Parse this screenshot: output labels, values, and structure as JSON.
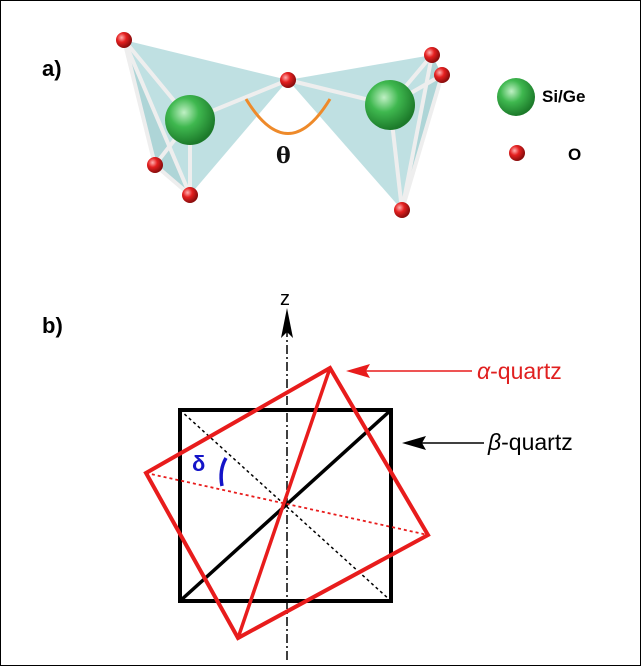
{
  "panels": {
    "a": {
      "label": "a)"
    },
    "b": {
      "label": "b)"
    }
  },
  "legend": {
    "si_ge": {
      "label": "Si/Ge",
      "color": "#2eaa3f"
    },
    "oxygen": {
      "label": "O",
      "color": "#e01616"
    }
  },
  "angles": {
    "theta": "θ",
    "delta": "δ"
  },
  "axis": {
    "z_label": "z"
  },
  "structures": {
    "alpha": {
      "greek": "α",
      "suffix": "-quartz",
      "color": "#e81c1c"
    },
    "beta": {
      "greek": "β",
      "suffix": "-quartz",
      "color": "#000000"
    }
  },
  "colors": {
    "tetrahedron_fill": "#a9d6d8",
    "bond": "#e8e8e8",
    "theta_arc": "#ee8a2a",
    "delta_arc": "#1414c8"
  }
}
